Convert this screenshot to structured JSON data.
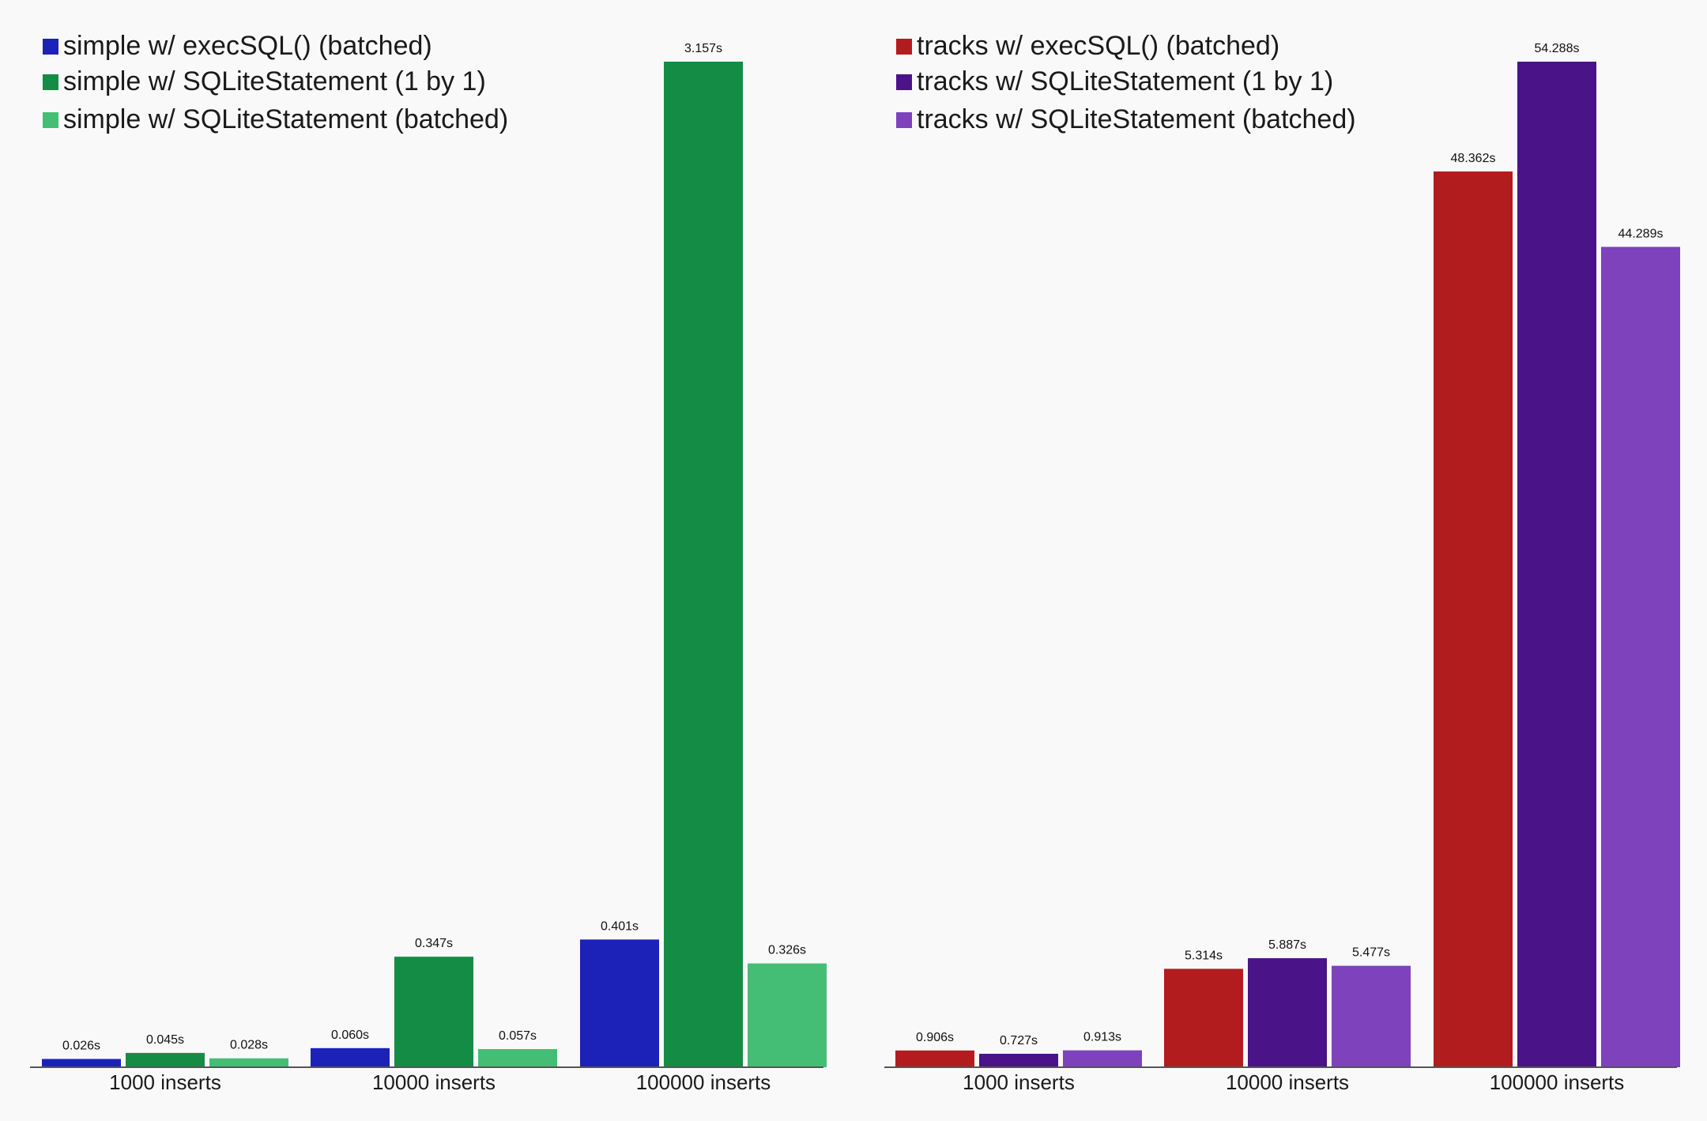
{
  "chart_data": [
    {
      "type": "bar",
      "title": "",
      "xlabel": "",
      "ylabel": "",
      "legend_position": "top-left",
      "categories": [
        "1000 inserts",
        "10000 inserts",
        "100000 inserts"
      ],
      "ylim": [
        0,
        3.157
      ],
      "grid": false,
      "series": [
        {
          "name": "simple w/ execSQL() (batched)",
          "color": "#1c22b8",
          "values": [
            0.026,
            0.06,
            0.401
          ],
          "labels": [
            "0.026s",
            "0.060s",
            "0.401s"
          ]
        },
        {
          "name": "simple w/ SQLiteStatement (1 by 1)",
          "color": "#158c45",
          "values": [
            0.045,
            0.347,
            3.157
          ],
          "labels": [
            "0.045s",
            "0.347s",
            "3.157s"
          ]
        },
        {
          "name": "simple w/ SQLiteStatement (batched)",
          "color": "#45be75",
          "values": [
            0.028,
            0.057,
            0.326
          ],
          "labels": [
            "0.028s",
            "0.057s",
            "0.326s"
          ]
        }
      ]
    },
    {
      "type": "bar",
      "title": "",
      "xlabel": "",
      "ylabel": "",
      "legend_position": "top-left",
      "categories": [
        "1000 inserts",
        "10000 inserts",
        "100000 inserts"
      ],
      "ylim": [
        0,
        54.288
      ],
      "grid": false,
      "series": [
        {
          "name": "tracks w/ execSQL() (batched)",
          "color": "#b31c1e",
          "values": [
            0.906,
            5.314,
            48.362
          ],
          "labels": [
            "0.906s",
            "5.314s",
            "48.362s"
          ]
        },
        {
          "name": "tracks w/ SQLiteStatement (1 by 1)",
          "color": "#4b1388",
          "values": [
            0.727,
            5.887,
            54.288
          ],
          "labels": [
            "0.727s",
            "5.887s",
            "54.288s"
          ]
        },
        {
          "name": "tracks w/ SQLiteStatement (batched)",
          "color": "#7e42bd",
          "values": [
            0.913,
            5.477,
            44.289
          ],
          "labels": [
            "0.913s",
            "5.477s",
            "44.289s"
          ]
        }
      ]
    }
  ]
}
